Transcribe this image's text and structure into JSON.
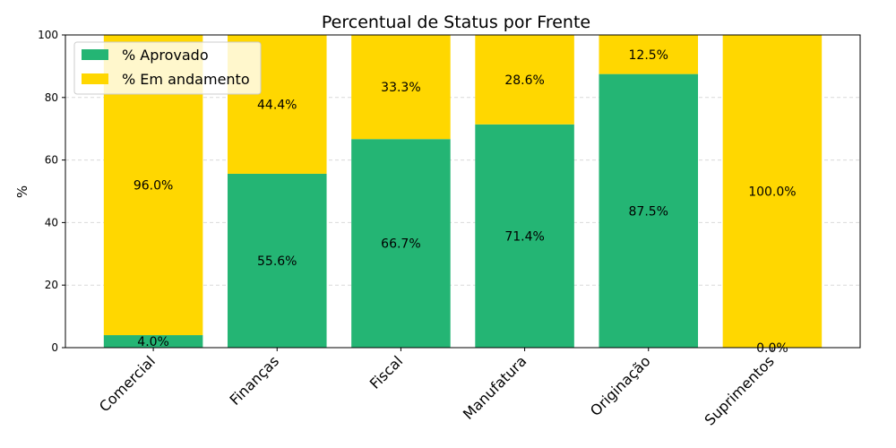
{
  "chart_data": {
    "type": "bar",
    "stacked": true,
    "title": "Percentual de Status por Frente",
    "xlabel": "",
    "ylabel": "%",
    "ylim": [
      0,
      100
    ],
    "yticks": [
      "0",
      "20",
      "40",
      "60",
      "80",
      "100"
    ],
    "grid": "y-dashed",
    "legend_position": "top-left",
    "categories": [
      "Comercial",
      "Finanças",
      "Fiscal",
      "Manufatura",
      "Originação",
      "Suprimentos"
    ],
    "series": [
      {
        "name": "% Aprovado",
        "color": "#24b574",
        "values": [
          4.0,
          55.6,
          66.7,
          71.4,
          87.5,
          0.0
        ],
        "labels": [
          "4.0%",
          "55.6%",
          "66.7%",
          "71.4%",
          "87.5%",
          "0.0%"
        ]
      },
      {
        "name": "% Em andamento",
        "color": "#ffd700",
        "values": [
          96.0,
          44.4,
          33.3,
          28.6,
          12.5,
          100.0
        ],
        "labels": [
          "96.0%",
          "44.4%",
          "33.3%",
          "28.6%",
          "12.5%",
          "100.0%"
        ]
      }
    ]
  }
}
